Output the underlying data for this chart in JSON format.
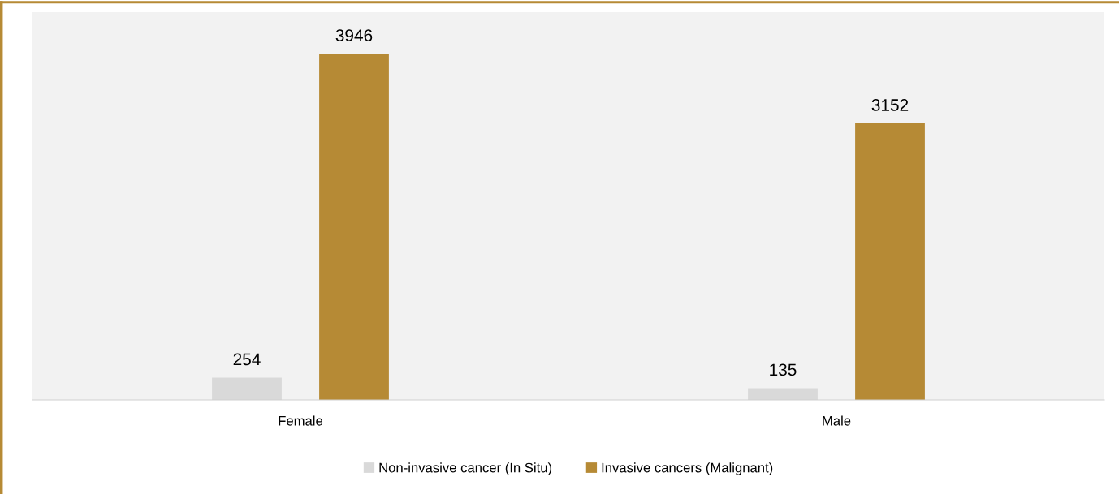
{
  "chart_data": {
    "type": "bar",
    "categories": [
      "Female",
      "Male"
    ],
    "series": [
      {
        "name": "Non-invasive cancer (In Situ)",
        "color": "#d9d9d9",
        "values": [
          254,
          135
        ]
      },
      {
        "name": "Invasive cancers (Malignant)",
        "color": "#b68a35",
        "values": [
          3946,
          3152
        ]
      }
    ],
    "data_labels": true,
    "grid": false,
    "legend": "bottom"
  }
}
